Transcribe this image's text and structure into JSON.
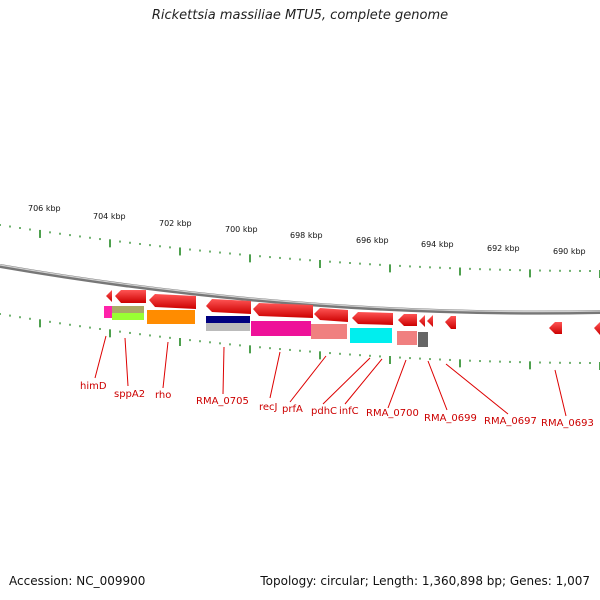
{
  "title": "Rickettsia massiliae MTU5, complete genome",
  "footer": {
    "accession": "Accession: NC_009900",
    "summary": "Topology: circular; Length: 1,360,898 bp; Genes: 1,007"
  },
  "scale_labels": [
    "706 kbp",
    "704 kbp",
    "702 kbp",
    "700 kbp",
    "698 kbp",
    "696 kbp",
    "694 kbp",
    "692 kbp",
    "690 kbp"
  ],
  "gene_labels": [
    "himD",
    "sppA2",
    "rho",
    "RMA_0705",
    "recJ",
    "prfA",
    "pdhC",
    "infC",
    "RMA_0700",
    "RMA_0699",
    "RMA_0697",
    "RMA_0693"
  ],
  "colors": {
    "gene_arrow": "#ee1111",
    "backbone": "#888888",
    "tick": "#228822",
    "label": "#cc0000"
  }
}
